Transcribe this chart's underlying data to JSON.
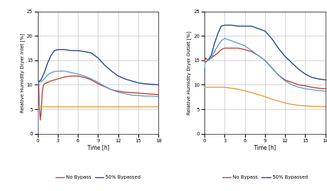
{
  "xlabel": "Time [h]",
  "ylim": [
    0,
    25
  ],
  "xlim": [
    0,
    18
  ],
  "xticks": [
    0,
    3,
    6,
    9,
    12,
    15,
    18
  ],
  "yticks": [
    0,
    5,
    10,
    15,
    20,
    25
  ],
  "colors": {
    "no_bypass": "#c0392b",
    "bypassed_50": "#1a3f8f",
    "bypassed_20": "#5b9bd5",
    "open_loop": "#e59a2f"
  },
  "left": {
    "no_bypass_t": [
      0,
      0.05,
      0.15,
      0.25,
      0.4,
      0.55,
      0.7,
      0.85,
      1.0,
      1.5,
      2.0,
      3.0,
      4.0,
      5.0,
      6.0,
      7.0,
      8.0,
      9.0,
      10.0,
      11.0,
      12.0,
      13.0,
      14.0,
      15.0,
      16.0,
      17.0,
      18.0
    ],
    "no_bypass_v": [
      0.0,
      10.5,
      10.8,
      5.5,
      2.8,
      5.0,
      8.5,
      9.8,
      10.2,
      10.5,
      10.8,
      11.2,
      11.6,
      11.8,
      11.8,
      11.5,
      11.0,
      10.2,
      9.6,
      9.0,
      8.7,
      8.5,
      8.4,
      8.3,
      8.2,
      8.1,
      8.0
    ],
    "bypassed_50_t": [
      0,
      0.05,
      0.5,
      1.0,
      1.5,
      2.0,
      2.5,
      3.0,
      4.0,
      5.0,
      6.0,
      7.0,
      8.0,
      9.0,
      10.0,
      11.0,
      12.0,
      13.0,
      14.0,
      15.0,
      16.0,
      17.0,
      18.0
    ],
    "bypassed_50_v": [
      0.0,
      10.5,
      11.0,
      12.5,
      14.5,
      16.0,
      17.0,
      17.2,
      17.2,
      17.0,
      17.0,
      16.8,
      16.5,
      15.5,
      14.0,
      12.8,
      11.8,
      11.2,
      10.8,
      10.4,
      10.2,
      10.1,
      10.0
    ],
    "bypassed_20_t": [
      0,
      0.05,
      0.5,
      1.0,
      1.5,
      2.0,
      2.5,
      3.0,
      4.0,
      5.0,
      6.0,
      7.0,
      8.0,
      9.0,
      10.0,
      11.0,
      12.0,
      13.0,
      14.0,
      15.0,
      16.0,
      17.0,
      18.0
    ],
    "bypassed_20_v": [
      0.0,
      10.5,
      10.6,
      11.2,
      12.0,
      12.5,
      12.7,
      12.8,
      12.8,
      12.5,
      12.2,
      11.8,
      11.2,
      10.5,
      9.7,
      9.0,
      8.5,
      8.2,
      7.9,
      7.8,
      7.7,
      7.7,
      7.6
    ],
    "open_loop_t": [
      0,
      18
    ],
    "open_loop_v": [
      5.5,
      5.5
    ]
  },
  "right": {
    "no_bypass_t": [
      0,
      0.05,
      0.2,
      0.5,
      0.8,
      1.0,
      1.5,
      2.0,
      2.5,
      3.0,
      4.0,
      5.0,
      6.0,
      7.0,
      8.0,
      9.0,
      10.0,
      11.0,
      12.0,
      13.0,
      14.0,
      15.0,
      16.0,
      17.0,
      18.0
    ],
    "no_bypass_v": [
      13.5,
      15.0,
      15.5,
      15.0,
      15.2,
      15.5,
      16.0,
      16.5,
      17.2,
      17.5,
      17.5,
      17.5,
      17.2,
      16.8,
      16.0,
      15.0,
      13.5,
      12.0,
      11.0,
      10.5,
      10.0,
      9.8,
      9.5,
      9.3,
      9.2
    ],
    "bypassed_50_t": [
      0,
      0.05,
      0.5,
      1.0,
      1.5,
      2.0,
      2.5,
      3.0,
      4.0,
      5.0,
      6.0,
      7.0,
      8.0,
      9.0,
      10.0,
      11.0,
      12.0,
      13.0,
      14.0,
      15.0,
      16.0,
      17.0,
      18.0
    ],
    "bypassed_50_v": [
      13.5,
      14.5,
      15.0,
      16.0,
      18.5,
      20.5,
      22.0,
      22.2,
      22.2,
      22.0,
      22.0,
      22.0,
      21.5,
      21.0,
      19.5,
      17.5,
      15.8,
      14.5,
      13.2,
      12.2,
      11.5,
      11.2,
      11.0
    ],
    "bypassed_20_t": [
      0,
      0.05,
      0.5,
      1.0,
      1.5,
      2.0,
      2.5,
      3.0,
      4.0,
      5.0,
      6.0,
      7.0,
      8.0,
      9.0,
      10.0,
      11.0,
      12.0,
      13.0,
      14.0,
      15.0,
      16.0,
      17.0,
      18.0
    ],
    "bypassed_20_v": [
      13.5,
      14.5,
      15.0,
      15.5,
      16.8,
      18.0,
      19.0,
      19.5,
      19.0,
      18.5,
      18.0,
      17.0,
      16.0,
      15.0,
      13.5,
      12.0,
      10.8,
      10.0,
      9.5,
      9.2,
      9.0,
      8.8,
      8.7
    ],
    "open_loop_t": [
      0,
      0.5,
      1.0,
      2.0,
      3.0,
      4.0,
      5.0,
      6.0,
      7.0,
      8.0,
      9.0,
      10.0,
      11.0,
      12.0,
      13.0,
      14.0,
      15.0,
      16.0,
      17.0,
      18.0
    ],
    "open_loop_v": [
      9.5,
      9.5,
      9.5,
      9.5,
      9.5,
      9.3,
      9.1,
      8.8,
      8.4,
      8.0,
      7.6,
      7.1,
      6.7,
      6.3,
      6.0,
      5.8,
      5.7,
      5.6,
      5.6,
      5.5
    ]
  },
  "legend_left": [
    {
      "label": "No Bypass",
      "color": "#c0392b"
    },
    {
      "label": "50% Bypassed",
      "color": "#1a3f8f"
    }
  ],
  "legend_right": [
    {
      "label": "No Bypass",
      "color": "#c0392b"
    },
    {
      "label": "50% Bypassed",
      "color": "#1a3f8f"
    }
  ]
}
